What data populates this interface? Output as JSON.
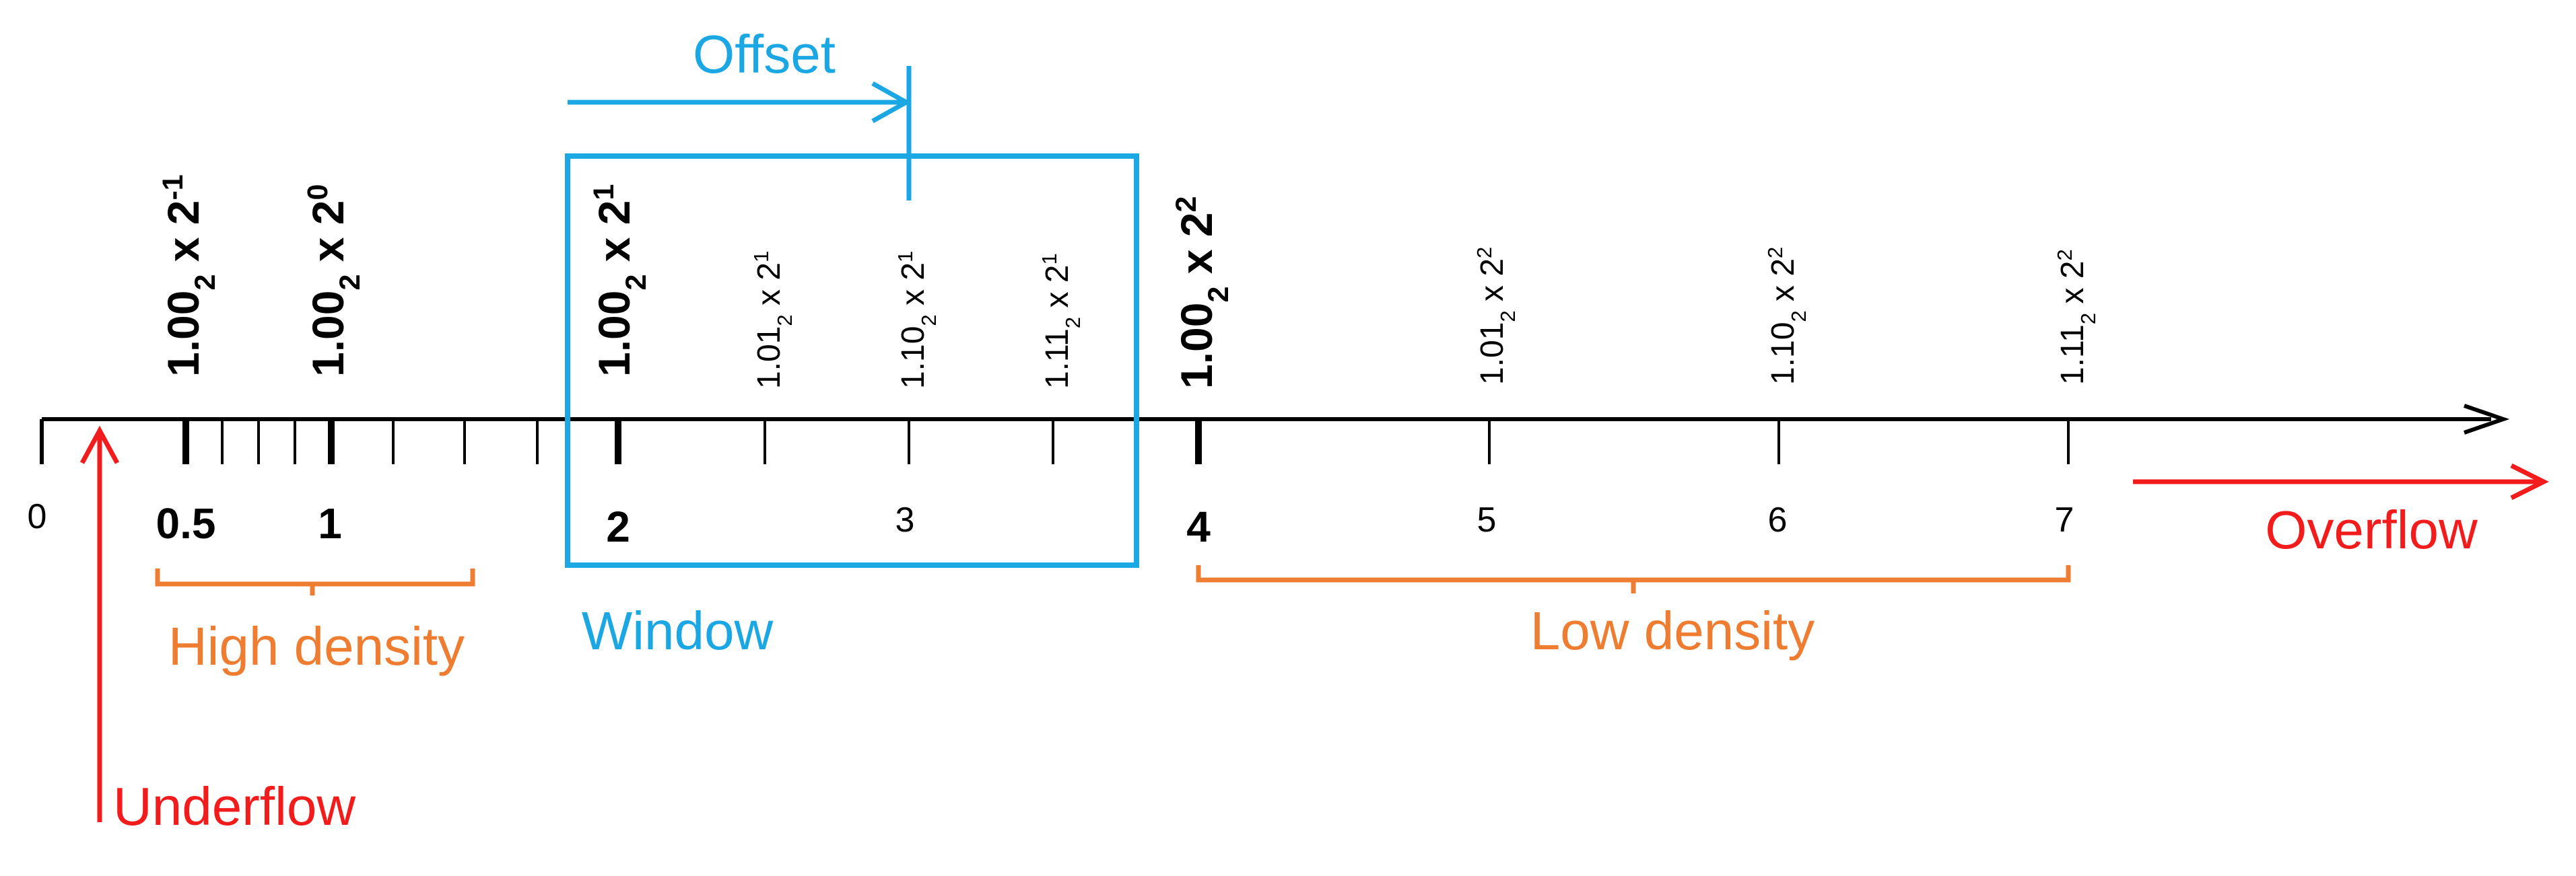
{
  "colors": {
    "axis": "#000000",
    "window": "#1aa7e3",
    "density": "#ee7d31",
    "flow": "#f21c1c"
  },
  "axis_numbers": [
    {
      "text": "0",
      "bold": false
    },
    {
      "text": "0.5",
      "bold": true
    },
    {
      "text": "1",
      "bold": true
    },
    {
      "text": "2",
      "bold": true
    },
    {
      "text": "3",
      "bold": false
    },
    {
      "text": "4",
      "bold": true
    },
    {
      "text": "5",
      "bold": false
    },
    {
      "text": "6",
      "bold": false
    },
    {
      "text": "7",
      "bold": false
    }
  ],
  "float_labels": [
    {
      "mantissa": "1.00",
      "base": "2",
      "times": " x 2",
      "exp": "-1",
      "bold": true
    },
    {
      "mantissa": "1.00",
      "base": "2",
      "times": " x 2",
      "exp": "0",
      "bold": true
    },
    {
      "mantissa": "1.00",
      "base": "2",
      "times": " x 2",
      "exp": "1",
      "bold": true
    },
    {
      "mantissa": "1.01",
      "base": "2",
      "times": " x 2",
      "exp": "1",
      "bold": false
    },
    {
      "mantissa": "1.10",
      "base": "2",
      "times": " x 2",
      "exp": "1",
      "bold": false
    },
    {
      "mantissa": "1.11",
      "base": "2",
      "times": " x 2",
      "exp": "1",
      "bold": false
    },
    {
      "mantissa": "1.00",
      "base": "2",
      "times": " x 2",
      "exp": "2",
      "bold": true
    },
    {
      "mantissa": "1.01",
      "base": "2",
      "times": " x 2",
      "exp": "2",
      "bold": false
    },
    {
      "mantissa": "1.10",
      "base": "2",
      "times": " x 2",
      "exp": "2",
      "bold": false
    },
    {
      "mantissa": "1.11",
      "base": "2",
      "times": " x 2",
      "exp": "2",
      "bold": false
    }
  ],
  "labels": {
    "offset": "Offset",
    "window": "Window",
    "high_density": "High density",
    "low_density": "Low density",
    "underflow": "Underflow",
    "overflow": "Overflow"
  }
}
